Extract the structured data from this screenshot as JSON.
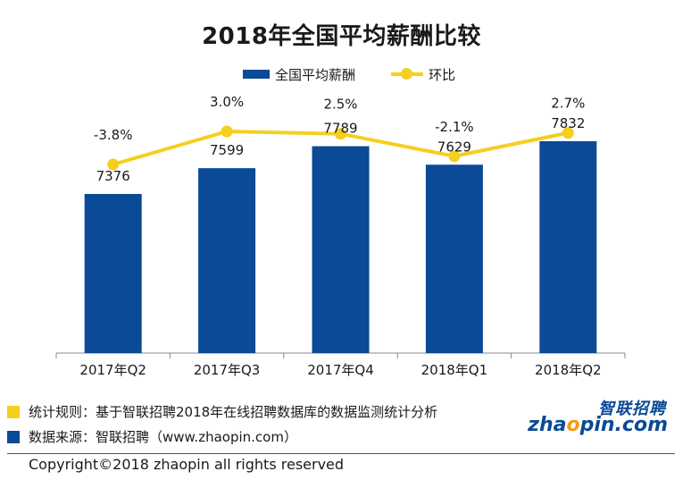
{
  "chart_data": {
    "type": "bar",
    "title": "2018年全国平均薪酬比较",
    "categories": [
      "2017年Q2",
      "2017年Q3",
      "2017年Q4",
      "2018年Q1",
      "2018年Q2"
    ],
    "series": [
      {
        "name": "全国平均薪酬",
        "type": "bar",
        "values": [
          7376,
          7599,
          7789,
          7629,
          7832
        ],
        "color": "#0a4a96"
      },
      {
        "name": "环比",
        "type": "line",
        "values": [
          -3.8,
          3.0,
          2.5,
          -2.1,
          2.7
        ],
        "labels": [
          "-3.8%",
          "3.0%",
          "2.5%",
          "-2.1%",
          "2.7%"
        ],
        "color": "#f5cf1f"
      }
    ],
    "xlabel": "",
    "ylabel": "",
    "grid": false,
    "legend": "top"
  },
  "legend": {
    "bar_label": "全国平均薪酬",
    "line_label": "环比"
  },
  "notes": {
    "rule": "统计规则：基于智联招聘2018年在线招聘数据库的数据监测统计分析",
    "source": "数据来源：智联招聘（www.zhaopin.com）"
  },
  "logo": {
    "cn": "智联招聘",
    "en_pre": "zha",
    "en_o": "o",
    "en_post": "pin.com"
  },
  "copyright": "Copyright©2018 zhaopin all rights reserved",
  "colors": {
    "bar": "#0a4a96",
    "line": "#f5cf1f",
    "orange": "#f39c12"
  }
}
